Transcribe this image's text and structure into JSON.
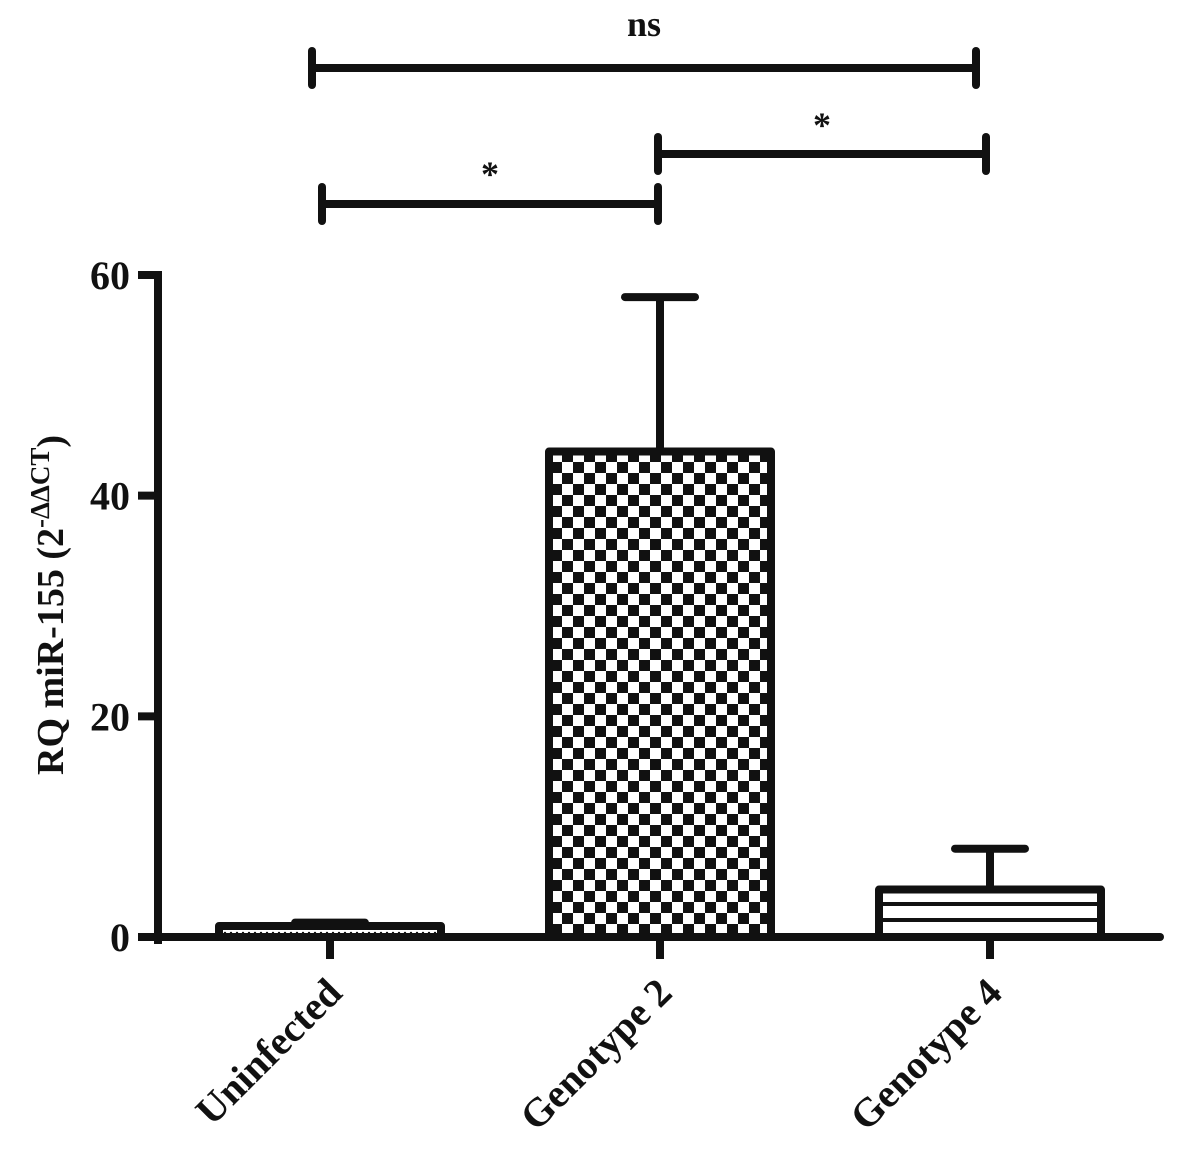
{
  "chart_data": {
    "type": "bar",
    "title": "",
    "xlabel": "",
    "ylabel": "RQ miR-155 (2",
    "ylabel_superscript": "-ΔΔCT",
    "ylabel_close": ")",
    "ylim": [
      0,
      60
    ],
    "yticks": [
      0,
      20,
      40,
      60
    ],
    "ytick_labels": [
      "0",
      "20",
      "40",
      "60"
    ],
    "grid": false,
    "legend": "none",
    "categories": [
      "Uninfected",
      "Genotype 2",
      "Genotype 4"
    ],
    "values": [
      1.0,
      44.0,
      4.3
    ],
    "errors": [
      0.3,
      14.0,
      3.7
    ],
    "patterns": [
      "dotted",
      "checkerboard",
      "horizontal-stripes"
    ],
    "colors": {
      "ink": "#111111",
      "background": "#ffffff"
    },
    "significance": [
      {
        "from": 0,
        "to": 2,
        "label": "ns"
      },
      {
        "from": 0,
        "to": 1,
        "label": "*"
      },
      {
        "from": 1,
        "to": 2,
        "label": "*"
      }
    ]
  }
}
